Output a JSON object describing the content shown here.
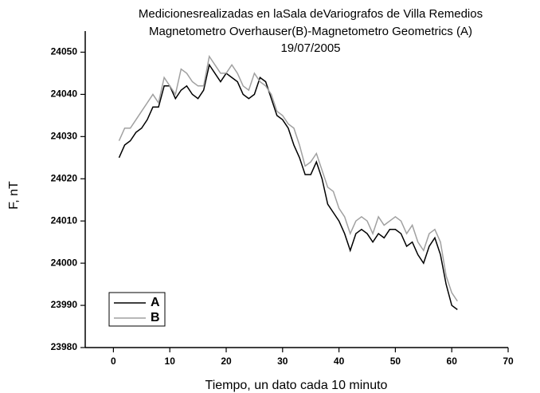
{
  "chart_data": {
    "type": "line",
    "title": [
      "Medicionesrealizadas en laSala deVariografos de Villa Remedios",
      "Magnetometro Overhauser(B)-Magnetometro Geometrics (A)",
      "19/07/2005"
    ],
    "x_label": "Tiempo, un dato cada 10 minuto",
    "y_label": "F,  nT",
    "x": [
      1,
      2,
      3,
      4,
      5,
      6,
      7,
      8,
      9,
      10,
      11,
      12,
      13,
      14,
      15,
      16,
      17,
      18,
      19,
      20,
      21,
      22,
      23,
      24,
      25,
      26,
      27,
      28,
      29,
      30,
      31,
      32,
      33,
      34,
      35,
      36,
      37,
      38,
      39,
      40,
      41,
      42,
      43,
      44,
      45,
      46,
      47,
      48,
      49,
      50,
      51,
      52,
      53,
      54,
      55,
      56,
      57,
      58,
      59,
      60,
      61
    ],
    "series": [
      {
        "name": "A",
        "color": "#000000",
        "values": [
          24025,
          24028,
          24029,
          24031,
          24032,
          24034,
          24037,
          24037,
          24042,
          24042,
          24039,
          24041,
          24042,
          24040,
          24039,
          24041,
          24047,
          24045,
          24043,
          24045,
          24044,
          24043,
          24040,
          24039,
          24040,
          24044,
          24043,
          24039,
          24035,
          24034,
          24032,
          24028,
          24025,
          24021,
          24021,
          24024,
          24020,
          24014,
          24012,
          24010,
          24007,
          24003,
          24007,
          24008,
          24007,
          24005,
          24007,
          24006,
          24008,
          24008,
          24007,
          24004,
          24005,
          24002,
          24000,
          24004,
          24006,
          24002,
          23995,
          23990,
          23989
        ]
      },
      {
        "name": "B",
        "color": "#a0a0a0",
        "values": [
          24029,
          24032,
          24032,
          24034,
          24036,
          24038,
          24040,
          24038,
          24044,
          24042,
          24040,
          24046,
          24045,
          24043,
          24042,
          24042,
          24049,
          24047,
          24045,
          24045,
          24047,
          24045,
          24042,
          24041,
          24045,
          24043,
          24042,
          24040,
          24036,
          24035,
          24033,
          24032,
          24028,
          24023,
          24024,
          24026,
          24022,
          24018,
          24017,
          24013,
          24011,
          24007,
          24010,
          24011,
          24010,
          24007,
          24011,
          24009,
          24010,
          24011,
          24010,
          24007,
          24009,
          24005,
          24003,
          24007,
          24008,
          24005,
          23997,
          23993,
          23991
        ]
      }
    ],
    "xlim": [
      -5,
      70
    ],
    "xticks": [
      0,
      10,
      20,
      30,
      40,
      50,
      60,
      70
    ],
    "ylim": [
      23980,
      24055
    ],
    "yticks": [
      23980,
      23990,
      24000,
      24010,
      24020,
      24030,
      24040,
      24050
    ],
    "grid": false,
    "legend": "lower left"
  }
}
